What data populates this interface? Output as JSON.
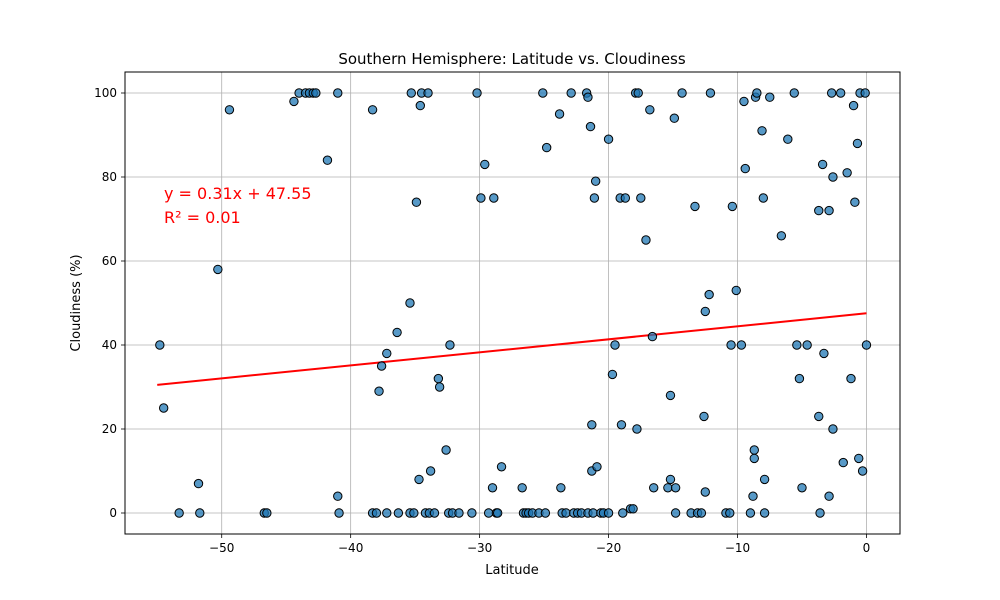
{
  "chart_data": {
    "type": "scatter",
    "title": "Southern Hemisphere: Latitude vs. Cloudiness",
    "xlabel": "Latitude",
    "ylabel": "Cloudiness (%)",
    "xlim": [
      -57.5,
      2.6
    ],
    "ylim": [
      -5,
      105
    ],
    "xticks": [
      -50,
      -40,
      -30,
      -20,
      -10,
      0
    ],
    "yticks": [
      0,
      20,
      40,
      60,
      80,
      100
    ],
    "grid": true,
    "point_color": "#1f77b4",
    "regression": {
      "slope": 0.31,
      "intercept": 47.55,
      "x_range": [
        -55,
        0
      ],
      "color": "#ff0000",
      "equation_label": "y = 0.31x + 47.55",
      "r2_label": "R² = 0.01"
    },
    "points": [
      [
        -54.8,
        40
      ],
      [
        -54.5,
        25
      ],
      [
        -53.3,
        0
      ],
      [
        -51.8,
        7
      ],
      [
        -51.7,
        0
      ],
      [
        -50.3,
        58
      ],
      [
        -49.4,
        96
      ],
      [
        -46.7,
        0
      ],
      [
        -46.5,
        0
      ],
      [
        -44.4,
        98
      ],
      [
        -44,
        100
      ],
      [
        -43.5,
        100
      ],
      [
        -43.2,
        100
      ],
      [
        -42.9,
        100
      ],
      [
        -42.7,
        100
      ],
      [
        -41.8,
        84
      ],
      [
        -41,
        100
      ],
      [
        -41,
        4
      ],
      [
        -40.9,
        0
      ],
      [
        -38.3,
        96
      ],
      [
        -38.3,
        0
      ],
      [
        -38,
        0
      ],
      [
        -37.8,
        29
      ],
      [
        -37.6,
        35
      ],
      [
        -37.2,
        38
      ],
      [
        -37.2,
        0
      ],
      [
        -36.4,
        43
      ],
      [
        -36.3,
        0
      ],
      [
        -35.4,
        50
      ],
      [
        -35.4,
        0
      ],
      [
        -35.3,
        100
      ],
      [
        -35.1,
        0
      ],
      [
        -34.9,
        74
      ],
      [
        -34.7,
        8
      ],
      [
        -34.6,
        97
      ],
      [
        -34.5,
        100
      ],
      [
        -34.2,
        0
      ],
      [
        -34,
        100
      ],
      [
        -33.9,
        0
      ],
      [
        -33.8,
        10
      ],
      [
        -33.5,
        0
      ],
      [
        -33.2,
        32
      ],
      [
        -33.1,
        30
      ],
      [
        -32.6,
        15
      ],
      [
        -32.4,
        0
      ],
      [
        -32.3,
        40
      ],
      [
        -32.1,
        0
      ],
      [
        -31.6,
        0
      ],
      [
        -30.6,
        0
      ],
      [
        -30.2,
        100
      ],
      [
        -29.9,
        75
      ],
      [
        -29.6,
        83
      ],
      [
        -29.3,
        0
      ],
      [
        -29,
        6
      ],
      [
        -28.9,
        75
      ],
      [
        -28.7,
        0
      ],
      [
        -28.6,
        0
      ],
      [
        -28.3,
        11
      ],
      [
        -26.7,
        6
      ],
      [
        -26.6,
        0
      ],
      [
        -26.4,
        0
      ],
      [
        -26.2,
        0
      ],
      [
        -25.9,
        0
      ],
      [
        -25.4,
        0
      ],
      [
        -25.1,
        100
      ],
      [
        -24.9,
        0
      ],
      [
        -24.8,
        87
      ],
      [
        -23.8,
        95
      ],
      [
        -23.7,
        6
      ],
      [
        -23.6,
        0
      ],
      [
        -23.3,
        0
      ],
      [
        -22.9,
        100
      ],
      [
        -22.7,
        0
      ],
      [
        -22.4,
        0
      ],
      [
        -22.1,
        0
      ],
      [
        -21.7,
        100
      ],
      [
        -21.6,
        99
      ],
      [
        -21.6,
        0
      ],
      [
        -21.4,
        92
      ],
      [
        -21.3,
        21
      ],
      [
        -21.3,
        10
      ],
      [
        -21.2,
        0
      ],
      [
        -21.1,
        75
      ],
      [
        -21,
        79
      ],
      [
        -20.9,
        11
      ],
      [
        -20.6,
        0
      ],
      [
        -20.4,
        0
      ],
      [
        -20,
        89
      ],
      [
        -20,
        0
      ],
      [
        -19.7,
        33
      ],
      [
        -19.5,
        40
      ],
      [
        -19.1,
        75
      ],
      [
        -19,
        21
      ],
      [
        -18.9,
        0
      ],
      [
        -18.7,
        75
      ],
      [
        -18.3,
        1
      ],
      [
        -18.1,
        1
      ],
      [
        -17.9,
        100
      ],
      [
        -17.8,
        20
      ],
      [
        -17.7,
        100
      ],
      [
        -17.5,
        75
      ],
      [
        -17.1,
        65
      ],
      [
        -16.8,
        96
      ],
      [
        -16.6,
        42
      ],
      [
        -16.5,
        6
      ],
      [
        -15.4,
        6
      ],
      [
        -15.2,
        28
      ],
      [
        -15.2,
        8
      ],
      [
        -14.9,
        94
      ],
      [
        -14.8,
        6
      ],
      [
        -14.8,
        0
      ],
      [
        -14.3,
        100
      ],
      [
        -13.6,
        0
      ],
      [
        -13.3,
        73
      ],
      [
        -13.1,
        0
      ],
      [
        -12.8,
        0
      ],
      [
        -12.6,
        23
      ],
      [
        -12.5,
        5
      ],
      [
        -12.5,
        48
      ],
      [
        -12.2,
        52
      ],
      [
        -12.1,
        100
      ],
      [
        -10.9,
        0
      ],
      [
        -10.6,
        0
      ],
      [
        -10.5,
        40
      ],
      [
        -10.4,
        73
      ],
      [
        -10.1,
        53
      ],
      [
        -9.7,
        40
      ],
      [
        -9.5,
        98
      ],
      [
        -9.4,
        82
      ],
      [
        -9,
        0
      ],
      [
        -8.8,
        4
      ],
      [
        -8.7,
        15
      ],
      [
        -8.7,
        13
      ],
      [
        -8.6,
        99
      ],
      [
        -8.5,
        100
      ],
      [
        -8.1,
        91
      ],
      [
        -8,
        75
      ],
      [
        -7.9,
        8
      ],
      [
        -7.9,
        0
      ],
      [
        -7.5,
        99
      ],
      [
        -6.6,
        66
      ],
      [
        -6.1,
        89
      ],
      [
        -5.6,
        100
      ],
      [
        -5.4,
        40
      ],
      [
        -5.2,
        32
      ],
      [
        -5,
        6
      ],
      [
        -4.6,
        40
      ],
      [
        -3.7,
        72
      ],
      [
        -3.7,
        23
      ],
      [
        -3.6,
        0
      ],
      [
        -3.4,
        83
      ],
      [
        -3.3,
        38
      ],
      [
        -2.9,
        72
      ],
      [
        -2.9,
        4
      ],
      [
        -2.7,
        100
      ],
      [
        -2.6,
        80
      ],
      [
        -2.6,
        20
      ],
      [
        -2,
        100
      ],
      [
        -1.8,
        12
      ],
      [
        -1.5,
        81
      ],
      [
        -1.2,
        32
      ],
      [
        -1,
        97
      ],
      [
        -0.9,
        74
      ],
      [
        -0.7,
        88
      ],
      [
        -0.6,
        13
      ],
      [
        -0.5,
        100
      ],
      [
        -0.3,
        10
      ],
      [
        -0.1,
        100
      ],
      [
        0,
        40
      ]
    ]
  }
}
